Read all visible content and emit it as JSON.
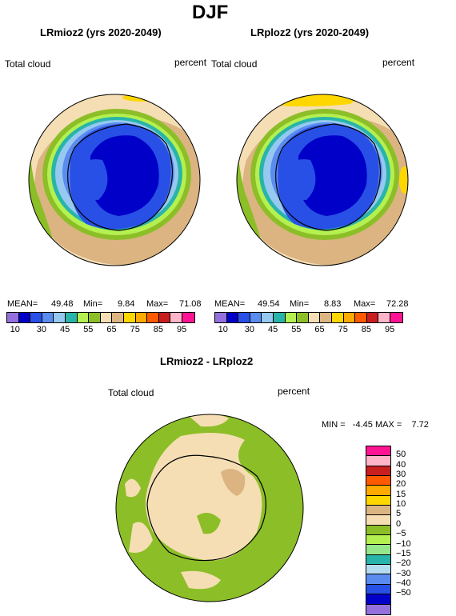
{
  "figure_title": "DJF",
  "panels": [
    {
      "title": "LRmioz2 (yrs 2020-2049)",
      "left_label": "Total cloud",
      "right_label": "percent",
      "stats": {
        "mean_label": "MEAN=",
        "mean": "49.48",
        "min_label": "Min=",
        "min": "9.84",
        "max_label": "Max=",
        "max": "71.08"
      }
    },
    {
      "title": "LRploz2 (yrs 2020-2049)",
      "left_label": "Total cloud",
      "right_label": "percent",
      "stats": {
        "mean_label": "MEAN=",
        "mean": "49.54",
        "min_label": "Min=",
        "min": "8.83",
        "max_label": "Max=",
        "max": "72.28"
      }
    },
    {
      "title": "LRmioz2 - LRploz2",
      "left_label": "Total cloud",
      "right_label": "percent",
      "minmax": "MIN =   -4.45 MAX =    7.72"
    }
  ],
  "colorbar_top": {
    "colors": [
      "#9370db",
      "#0000c8",
      "#2850e6",
      "#5a8cf0",
      "#96c8f0",
      "#28b4aa",
      "#b4f050",
      "#8cbe28",
      "#f5deb3",
      "#dcb482",
      "#ffd700",
      "#ffaa00",
      "#ff5a00",
      "#c81e1e",
      "#ffb4c8",
      "#ff1493"
    ],
    "tick_labels": [
      "10",
      "30",
      "45",
      "55",
      "65",
      "75",
      "85",
      "95"
    ],
    "tick_labels_b": [
      "10",
      "30",
      "45",
      "55",
      "65",
      "75",
      "85",
      "95"
    ]
  },
  "colorbar_diff": {
    "colors": [
      "#ff1493",
      "#ffb4c8",
      "#c81e1e",
      "#ff5a00",
      "#ffaa00",
      "#ffd700",
      "#dcb482",
      "#f5deb3",
      "#8cbe28",
      "#b4f050",
      "#96e68c",
      "#28b4aa",
      "#b4dcf0",
      "#5a8cf0",
      "#2850e6",
      "#0000c8",
      "#9370db"
    ],
    "labels": [
      "50",
      "40",
      "30",
      "20",
      "15",
      "10",
      "5",
      "0",
      "−5",
      "−10",
      "−15",
      "−20",
      "−30",
      "−40",
      "−50"
    ]
  }
}
